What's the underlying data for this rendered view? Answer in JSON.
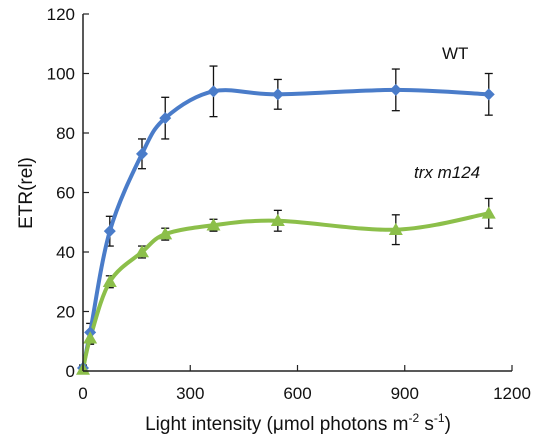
{
  "chart_data": {
    "type": "line",
    "xlabel": {
      "prefix": "Light intensity (μmol photons m",
      "sup1": "-2",
      "mid": " s",
      "sup2": "-1",
      "suffix": ")"
    },
    "ylabel": "ETR(rel)",
    "xlim": [
      0,
      1200
    ],
    "ylim": [
      0,
      120
    ],
    "xticks": [
      "0",
      "300",
      "600",
      "900",
      "1200"
    ],
    "yticks": [
      "0",
      "20",
      "40",
      "60",
      "80",
      "100",
      "120"
    ],
    "grid": false,
    "legend": "none",
    "x": [
      0,
      20,
      75,
      165,
      230,
      365,
      545,
      875,
      1135
    ],
    "series": [
      {
        "name": "WT",
        "color": "#4a7cc9",
        "marker": "diamond",
        "values": [
          1,
          13,
          47,
          73,
          85,
          94,
          93,
          94.5,
          93
        ],
        "errors": [
          1,
          3,
          5,
          5,
          7,
          8.5,
          5,
          7,
          7
        ]
      },
      {
        "name": "trx m124",
        "color": "#8cbf4a",
        "marker": "triangle",
        "values": [
          0.5,
          11,
          30,
          40,
          46,
          49,
          50.5,
          47.5,
          53
        ],
        "errors": [
          1,
          2,
          2,
          2,
          2,
          2,
          3.5,
          5,
          5
        ]
      }
    ]
  }
}
